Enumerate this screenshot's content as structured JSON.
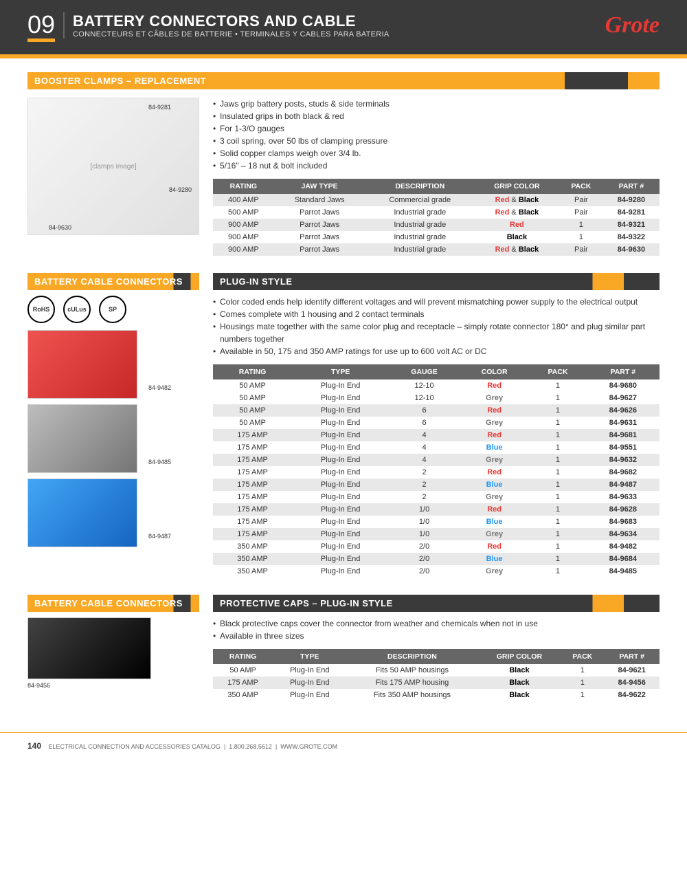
{
  "header": {
    "section_number": "09",
    "title": "BATTERY CONNECTORS AND CABLE",
    "subtitle": "CONNECTEURS ET CÂBLES DE BATTERIE • TERMINALES Y CABLES PARA BATERIA",
    "logo": "Grote"
  },
  "section1": {
    "title": "BOOSTER CLAMPS – REPLACEMENT",
    "img_labels": {
      "top": "84-9281",
      "mid": "84-9280",
      "bot": "84-9630"
    },
    "bullets": [
      "Jaws grip battery posts, studs & side terminals",
      "Insulated grips in both black & red",
      "For 1-3/O gauges",
      "3 coil spring, over 50 lbs of clamping pressure",
      "Solid copper clamps weigh over 3/4 lb.",
      "5/16\" – 18 nut & bolt included"
    ],
    "columns": [
      "RATING",
      "JAW TYPE",
      "DESCRIPTION",
      "GRIP COLOR",
      "PACK",
      "PART #"
    ],
    "rows": [
      {
        "rating": "400 AMP",
        "jaw": "Standard Jaws",
        "desc": "Commercial grade",
        "grip": "redblack",
        "pack": "Pair",
        "part": "84-9280",
        "alt": true
      },
      {
        "rating": "500 AMP",
        "jaw": "Parrot Jaws",
        "desc": "Industrial grade",
        "grip": "redblack",
        "pack": "Pair",
        "part": "84-9281",
        "alt": false
      },
      {
        "rating": "900 AMP",
        "jaw": "Parrot Jaws",
        "desc": "Industrial grade",
        "grip": "red",
        "pack": "1",
        "part": "84-9321",
        "alt": true
      },
      {
        "rating": "900 AMP",
        "jaw": "Parrot Jaws",
        "desc": "Industrial grade",
        "grip": "black",
        "pack": "1",
        "part": "84-9322",
        "alt": false
      },
      {
        "rating": "900 AMP",
        "jaw": "Parrot Jaws",
        "desc": "Industrial grade",
        "grip": "redblack",
        "pack": "Pair",
        "part": "84-9630",
        "alt": true
      }
    ]
  },
  "section2": {
    "left_title": "BATTERY CABLE CONNECTORS",
    "right_title": "PLUG-IN STYLE",
    "certs": [
      "RoHS",
      "cULus",
      "SP"
    ],
    "conn_labels": {
      "red": "84-9482",
      "grey": "84-9485",
      "blue": "84-9487"
    },
    "bullets": [
      "Color coded ends help identify different voltages and will prevent mismatching power supply to the electrical output",
      "Comes complete with 1 housing and 2 contact terminals",
      "Housings mate together with the same color plug and receptacle – simply rotate connector 180° and plug similar part numbers together",
      "Available in 50, 175 and 350 AMP ratings for use up to 600 volt AC or DC"
    ],
    "columns": [
      "RATING",
      "TYPE",
      "GAUGE",
      "COLOR",
      "PACK",
      "PART #"
    ],
    "rows": [
      {
        "rating": "50 AMP",
        "type": "Plug-In End",
        "gauge": "12-10",
        "color": "Red",
        "colorClass": "red",
        "pack": "1",
        "part": "84-9680",
        "alt": false
      },
      {
        "rating": "50 AMP",
        "type": "Plug-In End",
        "gauge": "12-10",
        "color": "Grey",
        "colorClass": "grey",
        "pack": "1",
        "part": "84-9627",
        "alt": false
      },
      {
        "rating": "50 AMP",
        "type": "Plug-In End",
        "gauge": "6",
        "color": "Red",
        "colorClass": "red",
        "pack": "1",
        "part": "84-9626",
        "alt": true
      },
      {
        "rating": "50 AMP",
        "type": "Plug-In End",
        "gauge": "6",
        "color": "Grey",
        "colorClass": "grey",
        "pack": "1",
        "part": "84-9631",
        "alt": false
      },
      {
        "rating": "175 AMP",
        "type": "Plug-In End",
        "gauge": "4",
        "color": "Red",
        "colorClass": "red",
        "pack": "1",
        "part": "84-9681",
        "alt": true
      },
      {
        "rating": "175 AMP",
        "type": "Plug-In End",
        "gauge": "4",
        "color": "Blue",
        "colorClass": "blue",
        "pack": "1",
        "part": "84-9551",
        "alt": false
      },
      {
        "rating": "175 AMP",
        "type": "Plug-In End",
        "gauge": "4",
        "color": "Grey",
        "colorClass": "grey",
        "pack": "1",
        "part": "84-9632",
        "alt": true
      },
      {
        "rating": "175 AMP",
        "type": "Plug-In End",
        "gauge": "2",
        "color": "Red",
        "colorClass": "red",
        "pack": "1",
        "part": "84-9682",
        "alt": false
      },
      {
        "rating": "175 AMP",
        "type": "Plug-In End",
        "gauge": "2",
        "color": "Blue",
        "colorClass": "blue",
        "pack": "1",
        "part": "84-9487",
        "alt": true
      },
      {
        "rating": "175 AMP",
        "type": "Plug-In End",
        "gauge": "2",
        "color": "Grey",
        "colorClass": "grey",
        "pack": "1",
        "part": "84-9633",
        "alt": false
      },
      {
        "rating": "175 AMP",
        "type": "Plug-In End",
        "gauge": "1/0",
        "color": "Red",
        "colorClass": "red",
        "pack": "1",
        "part": "84-9628",
        "alt": true
      },
      {
        "rating": "175 AMP",
        "type": "Plug-In End",
        "gauge": "1/0",
        "color": "Blue",
        "colorClass": "blue",
        "pack": "1",
        "part": "84-9683",
        "alt": false
      },
      {
        "rating": "175 AMP",
        "type": "Plug-In End",
        "gauge": "1/0",
        "color": "Grey",
        "colorClass": "grey",
        "pack": "1",
        "part": "84-9634",
        "alt": true
      },
      {
        "rating": "350 AMP",
        "type": "Plug-In End",
        "gauge": "2/0",
        "color": "Red",
        "colorClass": "red",
        "pack": "1",
        "part": "84-9482",
        "alt": false
      },
      {
        "rating": "350 AMP",
        "type": "Plug-In End",
        "gauge": "2/0",
        "color": "Blue",
        "colorClass": "blue",
        "pack": "1",
        "part": "84-9684",
        "alt": true
      },
      {
        "rating": "350 AMP",
        "type": "Plug-In End",
        "gauge": "2/0",
        "color": "Grey",
        "colorClass": "grey",
        "pack": "1",
        "part": "84-9485",
        "alt": false
      }
    ]
  },
  "section3": {
    "left_title": "BATTERY CABLE CONNECTORS",
    "right_title": "PROTECTIVE CAPS – PLUG-IN STYLE",
    "img_label": "84-9456",
    "bullets": [
      "Black protective caps cover the connector from weather and chemicals when not in use",
      "Available in three sizes"
    ],
    "columns": [
      "RATING",
      "TYPE",
      "DESCRIPTION",
      "GRIP COLOR",
      "PACK",
      "PART #"
    ],
    "rows": [
      {
        "rating": "50 AMP",
        "type": "Plug-In End",
        "desc": "Fits 50 AMP housings",
        "color": "Black",
        "pack": "1",
        "part": "84-9621",
        "alt": false
      },
      {
        "rating": "175 AMP",
        "type": "Plug-In End",
        "desc": "Fits 175 AMP housing",
        "color": "Black",
        "pack": "1",
        "part": "84-9456",
        "alt": true
      },
      {
        "rating": "350 AMP",
        "type": "Plug-In End",
        "desc": "Fits 350 AMP housings",
        "color": "Black",
        "pack": "1",
        "part": "84-9622",
        "alt": false
      }
    ]
  },
  "footer": {
    "page": "140",
    "text": "ELECTRICAL CONNECTION AND ACCESSORIES CATALOG",
    "phone": "1.800.268.5612",
    "url": "WWW.GROTE.COM"
  }
}
